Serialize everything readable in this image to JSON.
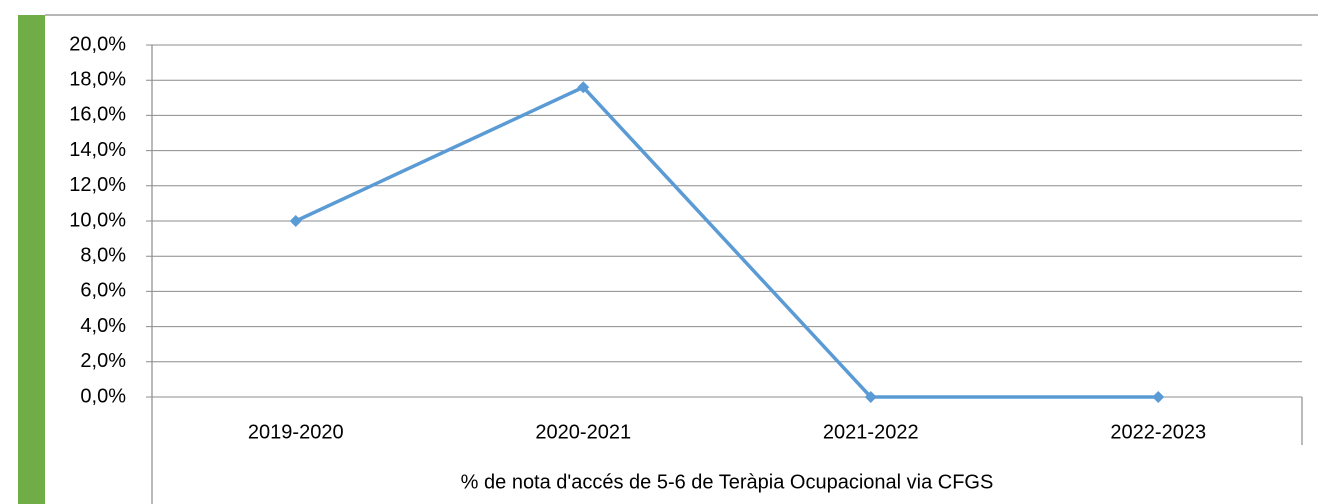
{
  "chart_data": {
    "type": "line",
    "x_label": "% de nota d'accés de 5-6 de Teràpia Ocupacional via CFGS",
    "categories": [
      "2019-2020",
      "2020-2021",
      "2021-2022",
      "2022-2023"
    ],
    "series": [
      {
        "name": null,
        "color": "#5b9bd5",
        "values": [
          10,
          17.6,
          0,
          0
        ]
      }
    ],
    "ylim": [
      0,
      20
    ],
    "yticks": [
      {
        "value": 0,
        "label": "0,0%"
      },
      {
        "value": 2,
        "label": "2,0%"
      },
      {
        "value": 4,
        "label": "4,0%"
      },
      {
        "value": 6,
        "label": "6,0%"
      },
      {
        "value": 8,
        "label": "8,0%"
      },
      {
        "value": 10,
        "label": "10,0%"
      },
      {
        "value": 12,
        "label": "12,0%"
      },
      {
        "value": 14,
        "label": "14,0%"
      },
      {
        "value": 16,
        "label": "16,0%"
      },
      {
        "value": 18,
        "label": "18,0%"
      },
      {
        "value": 20,
        "label": "20,0%"
      }
    ],
    "grid": true
  }
}
